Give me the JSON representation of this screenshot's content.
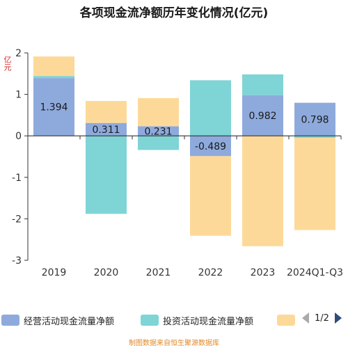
{
  "title": "各项现金流净额历年变化情况(亿元)",
  "unit_label": "亿元",
  "source": "制图数据来自恒生聚源数据库",
  "legend": {
    "items": [
      {
        "label": "经营活动现金流量净额",
        "color": "#8eaadc"
      },
      {
        "label": "投资活动现金流量净额",
        "color": "#7fd4d6"
      },
      {
        "label": "",
        "color": "#fdd999"
      }
    ],
    "page": "1/2"
  },
  "chart_data": {
    "type": "bar",
    "stacked": true,
    "categories": [
      "2019",
      "2020",
      "2021",
      "2022",
      "2023",
      "2024Q1-Q3"
    ],
    "ylim": [
      -3,
      2
    ],
    "yticks": [
      -3,
      -2,
      -1,
      0,
      1,
      2
    ],
    "grid": false,
    "legend_position": "bottom",
    "series": [
      {
        "name": "经营活动现金流量净额",
        "color": "#8eaadc",
        "values": [
          1.394,
          0.311,
          0.231,
          -0.489,
          0.982,
          0.798
        ]
      },
      {
        "name": "投资活动现金流量净额",
        "color": "#7fd4d6",
        "values": [
          0.05,
          -1.88,
          -0.34,
          1.34,
          0.5,
          -0.05
        ]
      },
      {
        "color": "#fdd999",
        "values": [
          0.47,
          0.53,
          0.68,
          -1.92,
          -2.66,
          -2.22
        ]
      }
    ],
    "data_labels": [
      "1.394",
      "0.311",
      "0.231",
      "-0.489",
      "0.982",
      "0.798"
    ]
  }
}
